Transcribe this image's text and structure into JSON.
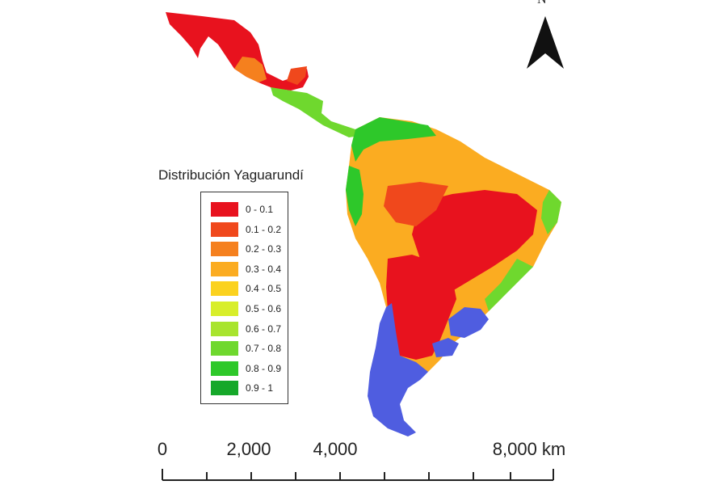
{
  "legend": {
    "title": "Distribución Yaguarundí",
    "items": [
      {
        "label": "0 - 0.1",
        "color": "#e8121e"
      },
      {
        "label": "0.1 - 0.2",
        "color": "#f0481c"
      },
      {
        "label": "0.2 - 0.3",
        "color": "#f5801e"
      },
      {
        "label": "0.3 - 0.4",
        "color": "#fbac21"
      },
      {
        "label": "0.4 - 0.5",
        "color": "#fbd21f"
      },
      {
        "label": "0.5 - 0.6",
        "color": "#d8ee2a"
      },
      {
        "label": "0.6 - 0.7",
        "color": "#a8e42e"
      },
      {
        "label": "0.7 - 0.8",
        "color": "#6fd82e"
      },
      {
        "label": "0.8 - 0.9",
        "color": "#2ec82a"
      },
      {
        "label": "0.9 - 1",
        "color": "#16a82a"
      }
    ]
  },
  "north_arrow": {
    "label": "N"
  },
  "scale_bar": {
    "labels": [
      "0",
      "2,000",
      "4,000",
      "8,000 km"
    ],
    "values": [
      0,
      2000,
      4000,
      8000
    ]
  },
  "colors": {
    "outside_range": "#4f5de0",
    "high_suitability": "#e8121e",
    "mid_suitability": "#fbac21",
    "low_suitability": "#2ec82a"
  }
}
